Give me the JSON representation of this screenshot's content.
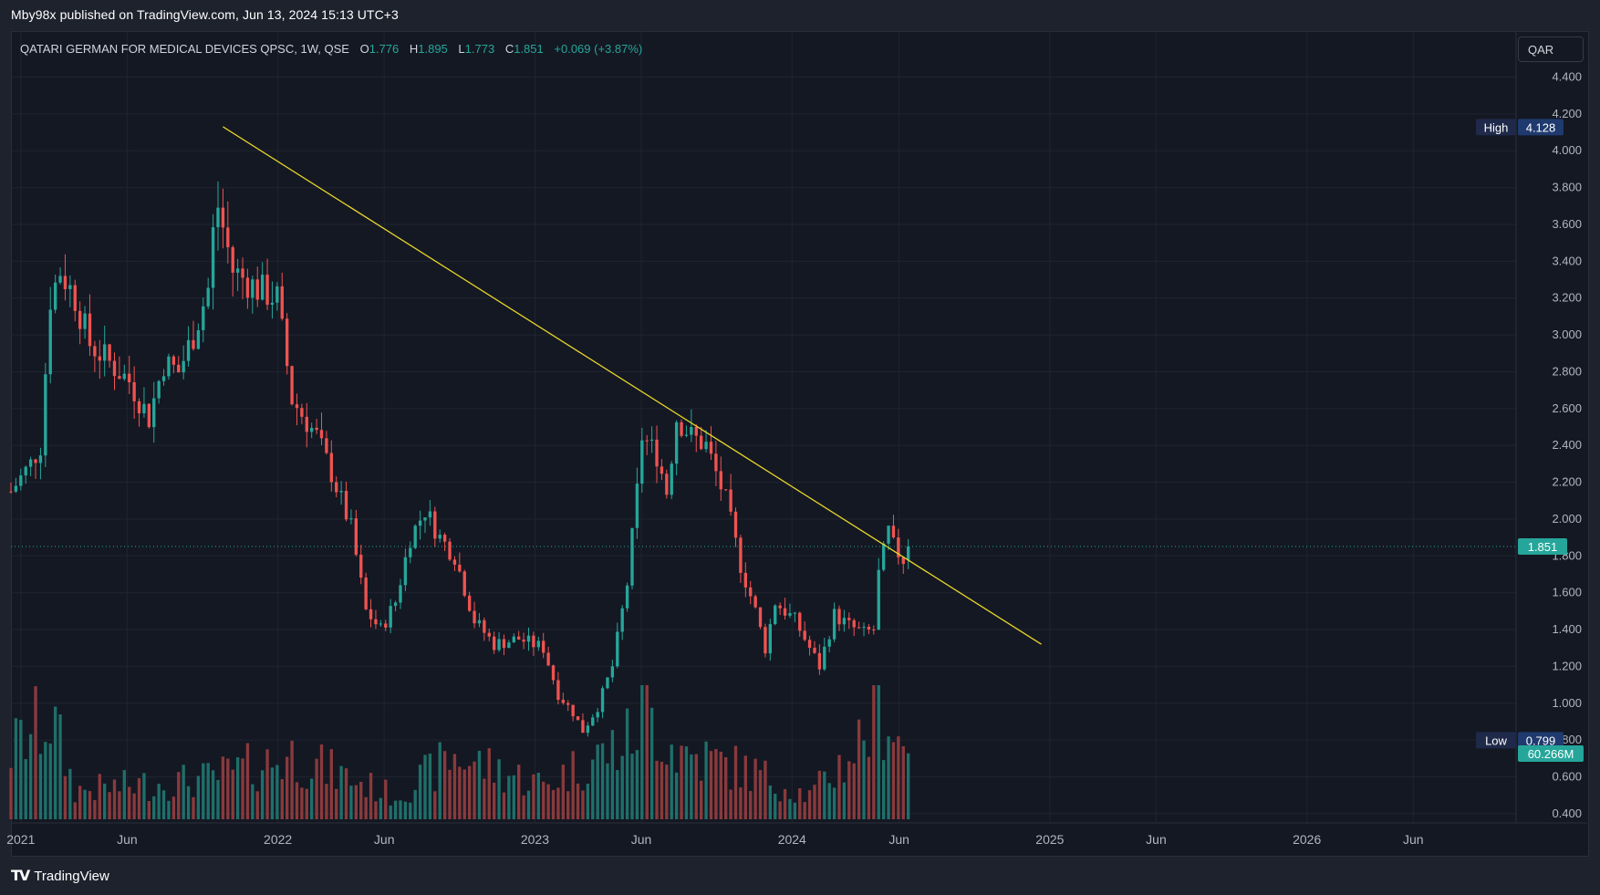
{
  "header": {
    "published_text": "Mby98x published on TradingView.com, Jun 13, 2024 15:13 UTC+3"
  },
  "legend": {
    "symbol": "QATARI GERMAN FOR MEDICAL DEVICES QPSC, 1W, QSE",
    "open_label": "O",
    "open": "1.776",
    "high_label": "H",
    "high": "1.895",
    "low_label": "L",
    "low": "1.773",
    "close_label": "C",
    "close": "1.851",
    "change": "+0.069 (+3.87%)"
  },
  "currency": "QAR",
  "markers": {
    "high_label": "High",
    "high_value": "4.128",
    "low_label": "Low",
    "low_value": "0.799",
    "last_price": "1.851",
    "volume": "60.266M"
  },
  "footer": {
    "brand": "TradingView"
  },
  "colors": {
    "up": "#26a69a",
    "down": "#ef5350",
    "vol_up": "#1f6f6a",
    "vol_down": "#8a3a3c",
    "trendline": "#e8d62a",
    "background": "#141823",
    "grid": "#1f2430"
  },
  "chart_data": {
    "type": "candlestick",
    "timeframe": "1W",
    "y_axis": {
      "ticks": [
        "4.400",
        "4.200",
        "4.000",
        "3.800",
        "3.600",
        "3.400",
        "3.200",
        "3.000",
        "2.800",
        "2.600",
        "2.400",
        "2.200",
        "2.000",
        "1.800",
        "1.600",
        "1.400",
        "1.200",
        "1.000",
        "0.800",
        "0.600",
        "0.400"
      ],
      "range": [
        0.35,
        4.65
      ]
    },
    "x_axis": {
      "ticks": [
        {
          "label": "2021",
          "date": "2021-01-01"
        },
        {
          "label": "Jun",
          "date": "2021-06-01"
        },
        {
          "label": "2022",
          "date": "2022-01-01"
        },
        {
          "label": "Jun",
          "date": "2022-06-01"
        },
        {
          "label": "2023",
          "date": "2023-01-01"
        },
        {
          "label": "Jun",
          "date": "2023-06-01"
        },
        {
          "label": "2024",
          "date": "2024-01-01"
        },
        {
          "label": "Jun",
          "date": "2024-06-01"
        },
        {
          "label": "2025",
          "date": "2025-01-01"
        },
        {
          "label": "Jun",
          "date": "2025-06-01"
        },
        {
          "label": "2026",
          "date": "2026-01-01"
        },
        {
          "label": "Jun",
          "date": "2026-06-01"
        }
      ],
      "range": [
        "2020-12-18",
        "2026-10-25"
      ]
    },
    "trendline": {
      "start": {
        "date": "2021-10-15",
        "price": 4.13
      },
      "end": {
        "date": "2024-12-20",
        "price": 1.32
      }
    },
    "price_anchors": [
      {
        "date": "2020-12-18",
        "price": 2.15
      },
      {
        "date": "2021-01-15",
        "price": 2.3
      },
      {
        "date": "2021-01-29",
        "price": 2.4
      },
      {
        "date": "2021-02-12",
        "price": 3.2
      },
      {
        "date": "2021-02-26",
        "price": 3.35
      },
      {
        "date": "2021-03-19",
        "price": 3.2
      },
      {
        "date": "2021-04-09",
        "price": 2.95
      },
      {
        "date": "2021-05-07",
        "price": 2.85
      },
      {
        "date": "2021-06-04",
        "price": 2.75
      },
      {
        "date": "2021-07-02",
        "price": 2.55
      },
      {
        "date": "2021-07-23",
        "price": 2.85
      },
      {
        "date": "2021-08-13",
        "price": 2.8
      },
      {
        "date": "2021-09-03",
        "price": 3.0
      },
      {
        "date": "2021-09-24",
        "price": 3.25
      },
      {
        "date": "2021-10-01",
        "price": 3.55
      },
      {
        "date": "2021-10-08",
        "price": 3.7
      },
      {
        "date": "2021-10-29",
        "price": 3.35
      },
      {
        "date": "2021-12-03",
        "price": 3.25
      },
      {
        "date": "2021-12-31",
        "price": 3.2
      },
      {
        "date": "2022-01-21",
        "price": 2.65
      },
      {
        "date": "2022-02-25",
        "price": 2.45
      },
      {
        "date": "2022-03-18",
        "price": 2.25
      },
      {
        "date": "2022-04-15",
        "price": 1.95
      },
      {
        "date": "2022-05-06",
        "price": 1.5
      },
      {
        "date": "2022-05-27",
        "price": 1.4
      },
      {
        "date": "2022-06-17",
        "price": 1.55
      },
      {
        "date": "2022-07-08",
        "price": 1.9
      },
      {
        "date": "2022-07-29",
        "price": 2.05
      },
      {
        "date": "2022-08-19",
        "price": 1.9
      },
      {
        "date": "2022-09-09",
        "price": 1.8
      },
      {
        "date": "2022-10-07",
        "price": 1.45
      },
      {
        "date": "2022-11-04",
        "price": 1.32
      },
      {
        "date": "2022-12-09",
        "price": 1.35
      },
      {
        "date": "2023-01-13",
        "price": 1.3
      },
      {
        "date": "2023-02-03",
        "price": 1.05
      },
      {
        "date": "2023-02-24",
        "price": 0.95
      },
      {
        "date": "2023-03-10",
        "price": 0.85
      },
      {
        "date": "2023-03-31",
        "price": 0.98
      },
      {
        "date": "2023-04-21",
        "price": 1.2
      },
      {
        "date": "2023-05-12",
        "price": 1.65
      },
      {
        "date": "2023-05-26",
        "price": 2.15
      },
      {
        "date": "2023-06-02",
        "price": 2.45
      },
      {
        "date": "2023-06-23",
        "price": 2.35
      },
      {
        "date": "2023-07-07",
        "price": 2.15
      },
      {
        "date": "2023-07-21",
        "price": 2.55
      },
      {
        "date": "2023-08-11",
        "price": 2.45
      },
      {
        "date": "2023-09-01",
        "price": 2.4
      },
      {
        "date": "2023-09-29",
        "price": 2.1
      },
      {
        "date": "2023-10-20",
        "price": 1.75
      },
      {
        "date": "2023-11-10",
        "price": 1.5
      },
      {
        "date": "2023-11-24",
        "price": 1.3
      },
      {
        "date": "2023-12-08",
        "price": 1.55
      },
      {
        "date": "2024-01-05",
        "price": 1.45
      },
      {
        "date": "2024-01-26",
        "price": 1.3
      },
      {
        "date": "2024-02-09",
        "price": 1.2
      },
      {
        "date": "2024-03-01",
        "price": 1.48
      },
      {
        "date": "2024-03-22",
        "price": 1.42
      },
      {
        "date": "2024-04-12",
        "price": 1.38
      },
      {
        "date": "2024-04-26",
        "price": 1.4
      },
      {
        "date": "2024-05-03",
        "price": 1.7
      },
      {
        "date": "2024-05-17",
        "price": 1.93
      },
      {
        "date": "2024-05-24",
        "price": 1.85
      },
      {
        "date": "2024-06-07",
        "price": 1.78
      },
      {
        "date": "2024-06-14",
        "price": 1.851
      }
    ],
    "volume_anchors": [
      {
        "date": "2020-12-18",
        "value": 0.6
      },
      {
        "date": "2021-02-12",
        "value": 0.9
      },
      {
        "date": "2021-03-19",
        "value": 0.25
      },
      {
        "date": "2021-09-24",
        "value": 0.35
      },
      {
        "date": "2022-01-21",
        "value": 0.55
      },
      {
        "date": "2022-06-17",
        "value": 0.2
      },
      {
        "date": "2022-09-09",
        "value": 0.55
      },
      {
        "date": "2023-01-13",
        "value": 0.3
      },
      {
        "date": "2023-05-19",
        "value": 0.7
      },
      {
        "date": "2023-06-02",
        "value": 1.0
      },
      {
        "date": "2023-07-21",
        "value": 0.6
      },
      {
        "date": "2023-11-10",
        "value": 0.4
      },
      {
        "date": "2024-01-26",
        "value": 0.2
      },
      {
        "date": "2024-03-22",
        "value": 0.55
      },
      {
        "date": "2024-05-10",
        "value": 1.0
      },
      {
        "date": "2024-06-14",
        "value": 0.55
      }
    ]
  }
}
